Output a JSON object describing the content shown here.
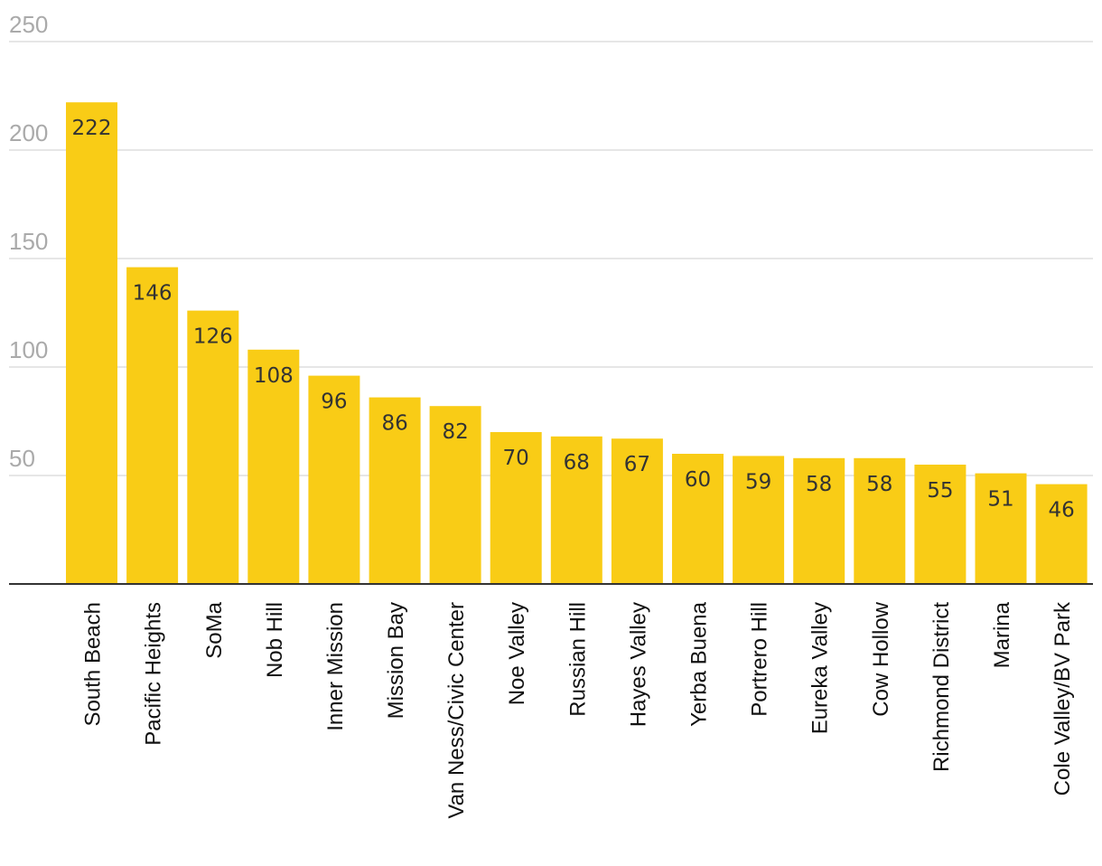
{
  "chart_data": {
    "type": "bar",
    "categories": [
      "South Beach",
      "Pacific Heights",
      "SoMa",
      "Nob Hill",
      "Inner Mission",
      "Mission Bay",
      "Van Ness/Civic Center",
      "Noe Valley",
      "Russian Hill",
      "Hayes Valley",
      "Yerba Buena",
      "Portrero Hill",
      "Eureka Valley",
      "Cow Hollow",
      "Richmond District",
      "Marina",
      "Cole Valley/BV Park"
    ],
    "values": [
      222,
      146,
      126,
      108,
      96,
      86,
      82,
      70,
      68,
      67,
      60,
      59,
      58,
      58,
      55,
      51,
      46
    ],
    "data_labels": [
      "222",
      "146",
      "126",
      "108",
      "96",
      "86",
      "82",
      "70",
      "68",
      "67",
      "60",
      "59",
      "58",
      "58",
      "55",
      "51",
      "46"
    ],
    "title": "",
    "xlabel": "",
    "ylabel": "",
    "ylim": [
      0,
      250
    ],
    "yticks": [
      50,
      100,
      150,
      200,
      250
    ],
    "ytick_labels": [
      "50",
      "100",
      "150",
      "200",
      "250"
    ],
    "grid": true,
    "legend": "none",
    "colors": {
      "bar": "#f9cc16",
      "grid": "#dddddd",
      "axis": "#333333",
      "tick_label": "#aaaaaa",
      "value_label": "#333333"
    }
  }
}
